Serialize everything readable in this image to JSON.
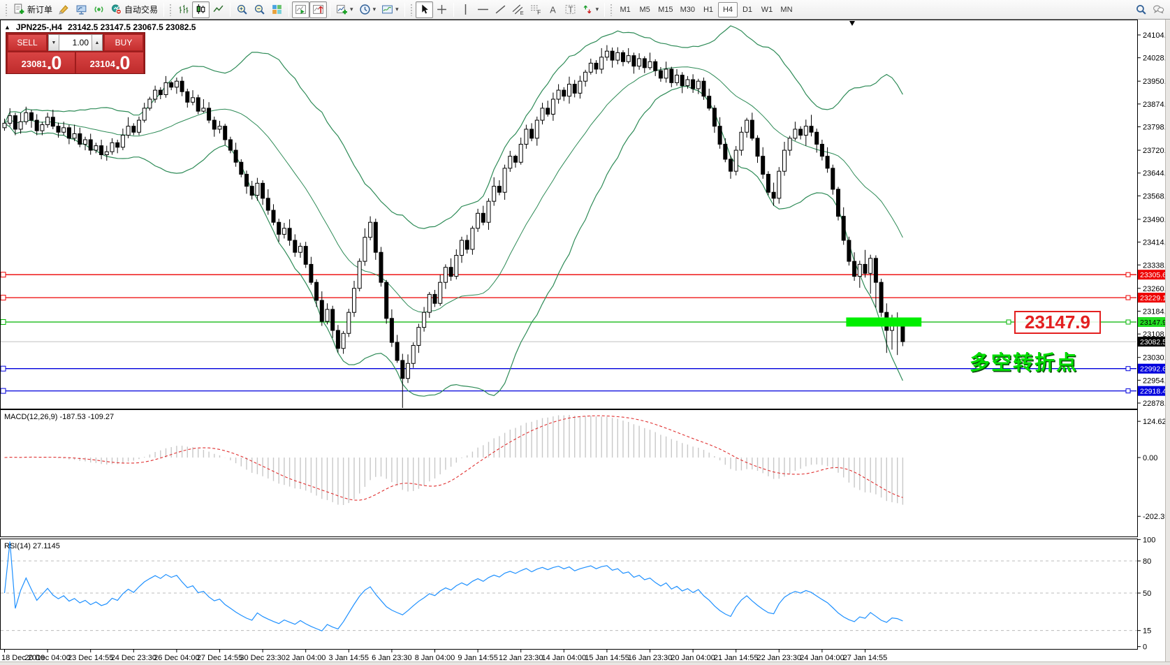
{
  "toolbar": {
    "new_order_label": "新订单",
    "auto_trading_label": "自动交易",
    "timeframes": [
      "M1",
      "M5",
      "M15",
      "M30",
      "H1",
      "H4",
      "D1",
      "W1",
      "MN"
    ],
    "active_timeframe": "H4",
    "text_tool_label": "A",
    "channel_tool_sub": "E",
    "fibo_tool_sub": "F",
    "text_label_tool": "T"
  },
  "quote_panel": {
    "sell_label": "SELL",
    "buy_label": "BUY",
    "volume": "1.00",
    "sell_price_main": "23081",
    "sell_price_big": ".0",
    "buy_price_main": "23104",
    "buy_price_big": ".0",
    "step_down": "▼",
    "step_up": "▲"
  },
  "chart_header": {
    "collapse_icon": "▲",
    "symbol_period": "JPN225-,H4",
    "ohlc_text": "23142.5 23147.5 23067.5 23082.5"
  },
  "annotations": {
    "price_callout": "23147.9",
    "cn_text": "多空转折点"
  },
  "colors": {
    "bull_fill": "#ffffff",
    "bear_fill": "#000000",
    "wick": "#000000",
    "bollinger": "#2e8b57",
    "red_line": "#ee0000",
    "green_line": "#00b400",
    "bright_green": "#00ee00",
    "gray_line": "#c0c0c0",
    "blue_line": "#0000dd",
    "macd_hist": "#c8c8c8",
    "macd_signal": "#e03030",
    "rsi_line": "#1e90ff",
    "axis_text": "#000000",
    "level_dash": "#bbbbbb"
  },
  "chart_data": {
    "type": "candlestick+indicators",
    "symbol": "JPN225-",
    "timeframe": "H4",
    "ohlc_display": {
      "open": 23142.5,
      "high": 23147.5,
      "low": 23067.5,
      "close": 23082.5
    },
    "y_ticks": [
      24104.0,
      24028.0,
      23950.0,
      23874.0,
      23798.0,
      23720.0,
      23644.0,
      23568.0,
      23490.0,
      23414.0,
      23338.0,
      23260.0,
      23184.0,
      23108.0,
      23030.0,
      22954.0,
      22878.0
    ],
    "x_labels": [
      "18 Dec 2019",
      "20 Dec 04:00",
      "23 Dec 14:55",
      "24 Dec 23:30",
      "26 Dec 04:00",
      "27 Dec 14:55",
      "30 Dec 23:30",
      "2 Jan 04:00",
      "3 Jan 14:55",
      "6 Jan 23:30",
      "8 Jan 04:00",
      "9 Jan 14:55",
      "12 Jan 23:30",
      "14 Jan 04:00",
      "15 Jan 14:55",
      "16 Jan 23:30",
      "20 Jan 04:00",
      "21 Jan 14:55",
      "22 Jan 23:30",
      "24 Jan 04:00",
      "27 Jan 14:55"
    ],
    "bars_per_label": 8,
    "hlines": [
      {
        "price": 23305.6,
        "color": "#ee0000",
        "tag_bg": "#ee0000",
        "tag_fg": "#ffffff",
        "handle": true
      },
      {
        "price": 23229.1,
        "color": "#ee0000",
        "tag_bg": "#ee0000",
        "tag_fg": "#ffffff",
        "handle": true
      },
      {
        "price": 23147.9,
        "color": "#00b400",
        "tag_bg": "#22dd22",
        "tag_fg": "#000000",
        "handle": true
      },
      {
        "price": 23082.5,
        "color": "#c0c0c0",
        "tag_bg": "#000000",
        "tag_fg": "#ffffff",
        "handle": false
      },
      {
        "price": 22992.6,
        "color": "#0000dd",
        "tag_bg": "#0000dd",
        "tag_fg": "#ffffff",
        "handle": true
      },
      {
        "price": 22918.4,
        "color": "#0000dd",
        "tag_bg": "#0000dd",
        "tag_fg": "#ffffff",
        "handle": true
      }
    ],
    "highlight_bar": {
      "price": 23147.9,
      "from_bar": 157,
      "to_bar": 171,
      "thickness_px": 13
    },
    "bollinger": {
      "period": 20,
      "deviation": 2
    },
    "macd": {
      "label": "MACD(12,26,9)",
      "values_text": "-187.53 -109.27",
      "fast": 12,
      "slow": 26,
      "signal": 9,
      "scale_ticks": [
        124.62,
        0.0,
        -202.39
      ]
    },
    "rsi": {
      "label": "RSI(14)",
      "value_text": "27.1145",
      "period": 14,
      "levels": [
        80,
        50,
        15
      ],
      "scale_ticks": [
        100,
        80,
        50,
        15,
        0
      ]
    },
    "candles": [
      [
        23795,
        23825,
        23785,
        23810
      ],
      [
        23810,
        23860,
        23800,
        23835
      ],
      [
        23835,
        23845,
        23770,
        23790
      ],
      [
        23790,
        23845,
        23775,
        23815
      ],
      [
        23815,
        23865,
        23805,
        23845
      ],
      [
        23845,
        23855,
        23795,
        23820
      ],
      [
        23820,
        23840,
        23770,
        23785
      ],
      [
        23785,
        23815,
        23770,
        23805
      ],
      [
        23805,
        23845,
        23795,
        23830
      ],
      [
        23830,
        23855,
        23790,
        23800
      ],
      [
        23800,
        23812,
        23762,
        23780
      ],
      [
        23780,
        23815,
        23770,
        23795
      ],
      [
        23795,
        23805,
        23740,
        23760
      ],
      [
        23760,
        23805,
        23750,
        23775
      ],
      [
        23775,
        23795,
        23730,
        23740
      ],
      [
        23740,
        23765,
        23720,
        23755
      ],
      [
        23755,
        23775,
        23705,
        23720
      ],
      [
        23720,
        23745,
        23710,
        23735
      ],
      [
        23735,
        23755,
        23690,
        23705
      ],
      [
        23705,
        23735,
        23685,
        23715
      ],
      [
        23715,
        23760,
        23705,
        23745
      ],
      [
        23745,
        23755,
        23710,
        23730
      ],
      [
        23730,
        23792,
        23720,
        23770
      ],
      [
        23770,
        23830,
        23760,
        23800
      ],
      [
        23800,
        23810,
        23770,
        23780
      ],
      [
        23780,
        23832,
        23770,
        23820
      ],
      [
        23820,
        23878,
        23812,
        23860
      ],
      [
        23860,
        23898,
        23852,
        23890
      ],
      [
        23890,
        23935,
        23878,
        23920
      ],
      [
        23920,
        23930,
        23890,
        23905
      ],
      [
        23905,
        23967,
        23895,
        23945
      ],
      [
        23945,
        23950,
        23920,
        23930
      ],
      [
        23930,
        23962,
        23908,
        23950
      ],
      [
        23950,
        23965,
        23900,
        23915
      ],
      [
        23915,
        23925,
        23862,
        23880
      ],
      [
        23880,
        23920,
        23870,
        23895
      ],
      [
        23895,
        23905,
        23840,
        23850
      ],
      [
        23850,
        23890,
        23845,
        23860
      ],
      [
        23860,
        23880,
        23810,
        23820
      ],
      [
        23820,
        23832,
        23765,
        23790
      ],
      [
        23790,
        23818,
        23776,
        23800
      ],
      [
        23800,
        23808,
        23737,
        23755
      ],
      [
        23755,
        23765,
        23710,
        23720
      ],
      [
        23720,
        23745,
        23665,
        23680
      ],
      [
        23680,
        23690,
        23630,
        23640
      ],
      [
        23640,
        23652,
        23575,
        23600
      ],
      [
        23600,
        23618,
        23556,
        23570
      ],
      [
        23570,
        23628,
        23552,
        23610
      ],
      [
        23610,
        23620,
        23538,
        23560
      ],
      [
        23560,
        23590,
        23505,
        23520
      ],
      [
        23520,
        23540,
        23470,
        23480
      ],
      [
        23480,
        23492,
        23415,
        23440
      ],
      [
        23440,
        23478,
        23426,
        23460
      ],
      [
        23460,
        23490,
        23402,
        23420
      ],
      [
        23420,
        23440,
        23365,
        23380
      ],
      [
        23380,
        23412,
        23362,
        23400
      ],
      [
        23400,
        23415,
        23328,
        23340
      ],
      [
        23340,
        23365,
        23272,
        23280
      ],
      [
        23280,
        23290,
        23198,
        23220
      ],
      [
        23220,
        23250,
        23135,
        23150
      ],
      [
        23150,
        23210,
        23140,
        23190
      ],
      [
        23190,
        23202,
        23095,
        23120
      ],
      [
        23120,
        23138,
        23046,
        23060
      ],
      [
        23060,
        23118,
        23042,
        23110
      ],
      [
        23110,
        23192,
        23098,
        23180
      ],
      [
        23180,
        23285,
        23165,
        23260
      ],
      [
        23260,
        23360,
        23250,
        23350
      ],
      [
        23350,
        23460,
        23335,
        23430
      ],
      [
        23430,
        23500,
        23420,
        23480
      ],
      [
        23480,
        23492,
        23355,
        23380
      ],
      [
        23380,
        23398,
        23266,
        23280
      ],
      [
        23280,
        23288,
        23142,
        23160
      ],
      [
        23160,
        23190,
        23065,
        23080
      ],
      [
        23080,
        23105,
        23012,
        23020
      ],
      [
        23020,
        23042,
        22860,
        22960
      ],
      [
        22960,
        23040,
        22945,
        23010
      ],
      [
        23010,
        23080,
        22995,
        23070
      ],
      [
        23070,
        23142,
        23045,
        23130
      ],
      [
        23130,
        23198,
        23116,
        23180
      ],
      [
        23180,
        23248,
        23162,
        23240
      ],
      [
        23240,
        23255,
        23198,
        23210
      ],
      [
        23210,
        23305,
        23202,
        23280
      ],
      [
        23280,
        23340,
        23258,
        23330
      ],
      [
        23330,
        23360,
        23285,
        23300
      ],
      [
        23300,
        23390,
        23290,
        23370
      ],
      [
        23370,
        23432,
        23345,
        23420
      ],
      [
        23420,
        23438,
        23376,
        23390
      ],
      [
        23390,
        23468,
        23372,
        23460
      ],
      [
        23460,
        23525,
        23448,
        23510
      ],
      [
        23510,
        23535,
        23470,
        23480
      ],
      [
        23480,
        23560,
        23455,
        23550
      ],
      [
        23550,
        23630,
        23535,
        23600
      ],
      [
        23600,
        23620,
        23570,
        23580
      ],
      [
        23580,
        23672,
        23555,
        23660
      ],
      [
        23660,
        23718,
        23648,
        23700
      ],
      [
        23700,
        23705,
        23662,
        23680
      ],
      [
        23680,
        23762,
        23672,
        23740
      ],
      [
        23740,
        23805,
        23725,
        23790
      ],
      [
        23790,
        23810,
        23750,
        23760
      ],
      [
        23760,
        23832,
        23735,
        23820
      ],
      [
        23820,
        23878,
        23806,
        23860
      ],
      [
        23860,
        23885,
        23832,
        23840
      ],
      [
        23840,
        23912,
        23818,
        23890
      ],
      [
        23890,
        23940,
        23875,
        23920
      ],
      [
        23920,
        23930,
        23884,
        23900
      ],
      [
        23900,
        23965,
        23875,
        23940
      ],
      [
        23940,
        23954,
        23896,
        23910
      ],
      [
        23910,
        23968,
        23892,
        23950
      ],
      [
        23950,
        23988,
        23932,
        23980
      ],
      [
        23980,
        24025,
        23972,
        24010
      ],
      [
        24010,
        24020,
        23974,
        23990
      ],
      [
        23990,
        24060,
        23975,
        24030
      ],
      [
        24030,
        24070,
        24018,
        24050
      ],
      [
        24050,
        24062,
        23995,
        24020
      ],
      [
        24020,
        24063,
        24006,
        24045
      ],
      [
        24045,
        24053,
        24000,
        24015
      ],
      [
        24015,
        24060,
        24008,
        24035
      ],
      [
        24035,
        24045,
        23975,
        24000
      ],
      [
        24000,
        24043,
        23988,
        24025
      ],
      [
        24025,
        24033,
        23977,
        23995
      ],
      [
        23995,
        24045,
        23988,
        24015
      ],
      [
        24015,
        24023,
        23967,
        23985
      ],
      [
        23985,
        23997,
        23948,
        23960
      ],
      [
        23960,
        24015,
        23945,
        23990
      ],
      [
        23990,
        23998,
        23930,
        23945
      ],
      [
        23945,
        23990,
        23935,
        23970
      ],
      [
        23970,
        23980,
        23910,
        23935
      ],
      [
        23935,
        23967,
        23925,
        23955
      ],
      [
        23955,
        23973,
        23911,
        23925
      ],
      [
        23925,
        23958,
        23907,
        23950
      ],
      [
        23950,
        23962,
        23888,
        23900
      ],
      [
        23900,
        23925,
        23852,
        23860
      ],
      [
        23860,
        23870,
        23778,
        23800
      ],
      [
        23800,
        23830,
        23725,
        23740
      ],
      [
        23740,
        23760,
        23680,
        23690
      ],
      [
        23690,
        23702,
        23625,
        23650
      ],
      [
        23650,
        23734,
        23636,
        23720
      ],
      [
        23720,
        23798,
        23702,
        23780
      ],
      [
        23780,
        23828,
        23762,
        23820
      ],
      [
        23820,
        23845,
        23752,
        23760
      ],
      [
        23760,
        23770,
        23678,
        23700
      ],
      [
        23700,
        23730,
        23625,
        23640
      ],
      [
        23640,
        23650,
        23570,
        23580
      ],
      [
        23580,
        23612,
        23535,
        23560
      ],
      [
        23560,
        23664,
        23542,
        23650
      ],
      [
        23650,
        23748,
        23635,
        23720
      ],
      [
        23720,
        23768,
        23702,
        23760
      ],
      [
        23760,
        23815,
        23752,
        23790
      ],
      [
        23790,
        23800,
        23756,
        23770
      ],
      [
        23770,
        23822,
        23735,
        23800
      ],
      [
        23800,
        23838,
        23766,
        23780
      ],
      [
        23780,
        23792,
        23712,
        23740
      ],
      [
        23740,
        23755,
        23686,
        23700
      ],
      [
        23700,
        23730,
        23645,
        23660
      ],
      [
        23660,
        23672,
        23572,
        23590
      ],
      [
        23590,
        23598,
        23486,
        23500
      ],
      [
        23500,
        23530,
        23405,
        23420
      ],
      [
        23420,
        23432,
        23336,
        23350
      ],
      [
        23350,
        23380,
        23285,
        23300
      ],
      [
        23300,
        23352,
        23262,
        23340
      ],
      [
        23340,
        23388,
        23296,
        23310
      ],
      [
        23310,
        23372,
        23242,
        23360
      ],
      [
        23360,
        23370,
        23196,
        23280
      ],
      [
        23280,
        23292,
        23165,
        23180
      ],
      [
        23180,
        23210,
        23045,
        23120
      ],
      [
        23120,
        23172,
        23056,
        23160
      ],
      [
        23160,
        23180,
        23038,
        23142.5
      ],
      [
        23142.5,
        23147.5,
        23067.5,
        23082.5
      ]
    ]
  }
}
